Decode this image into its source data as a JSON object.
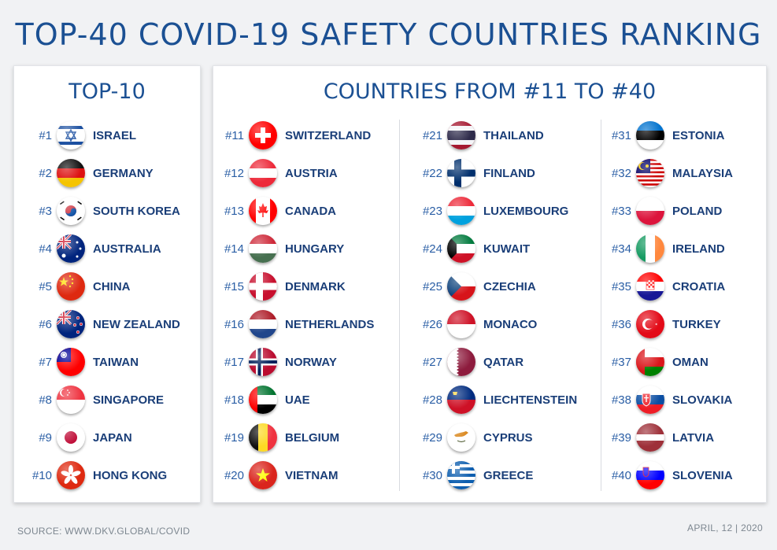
{
  "title": "TOP-40 COVID-19 SAFETY COUNTRIES RANKING",
  "top10": {
    "heading": "TOP-10",
    "items": [
      {
        "rank": "#1",
        "name": "ISRAEL",
        "flag": "israel-flag-icon"
      },
      {
        "rank": "#2",
        "name": "GERMANY",
        "flag": "germany-flag-icon"
      },
      {
        "rank": "#3",
        "name": "SOUTH KOREA",
        "flag": "south-korea-flag-icon"
      },
      {
        "rank": "#4",
        "name": "AUSTRALIA",
        "flag": "australia-flag-icon"
      },
      {
        "rank": "#5",
        "name": "CHINA",
        "flag": "china-flag-icon"
      },
      {
        "rank": "#6",
        "name": "NEW ZEALAND",
        "flag": "new-zealand-flag-icon"
      },
      {
        "rank": "#7",
        "name": "TAIWAN",
        "flag": "taiwan-flag-icon"
      },
      {
        "rank": "#8",
        "name": "SINGAPORE",
        "flag": "singapore-flag-icon"
      },
      {
        "rank": "#9",
        "name": "JAPAN",
        "flag": "japan-flag-icon"
      },
      {
        "rank": "#10",
        "name": "HONG KONG",
        "flag": "hong-kong-flag-icon"
      }
    ]
  },
  "rest": {
    "heading": "COUNTRIES FROM #11 TO #40",
    "items": [
      {
        "rank": "#11",
        "name": "SWITZERLAND",
        "flag": "switzerland-flag-icon"
      },
      {
        "rank": "#12",
        "name": "AUSTRIA",
        "flag": "austria-flag-icon"
      },
      {
        "rank": "#13",
        "name": "CANADA",
        "flag": "canada-flag-icon"
      },
      {
        "rank": "#14",
        "name": "HUNGARY",
        "flag": "hungary-flag-icon"
      },
      {
        "rank": "#15",
        "name": "DENMARK",
        "flag": "denmark-flag-icon"
      },
      {
        "rank": "#16",
        "name": "NETHERLANDS",
        "flag": "netherlands-flag-icon"
      },
      {
        "rank": "#17",
        "name": "NORWAY",
        "flag": "norway-flag-icon"
      },
      {
        "rank": "#18",
        "name": "UAE",
        "flag": "uae-flag-icon"
      },
      {
        "rank": "#19",
        "name": "BELGIUM",
        "flag": "belgium-flag-icon"
      },
      {
        "rank": "#20",
        "name": "VIETNAM",
        "flag": "vietnam-flag-icon"
      },
      {
        "rank": "#21",
        "name": "THAILAND",
        "flag": "thailand-flag-icon"
      },
      {
        "rank": "#22",
        "name": "FINLAND",
        "flag": "finland-flag-icon"
      },
      {
        "rank": "#23",
        "name": "LUXEMBOURG",
        "flag": "luxembourg-flag-icon"
      },
      {
        "rank": "#24",
        "name": "KUWAIT",
        "flag": "kuwait-flag-icon"
      },
      {
        "rank": "#25",
        "name": "CZECHIA",
        "flag": "czechia-flag-icon"
      },
      {
        "rank": "#26",
        "name": "MONACO",
        "flag": "monaco-flag-icon"
      },
      {
        "rank": "#27",
        "name": "QATAR",
        "flag": "qatar-flag-icon"
      },
      {
        "rank": "#28",
        "name": "LIECHTENSTEIN",
        "flag": "liechtenstein-flag-icon"
      },
      {
        "rank": "#29",
        "name": "CYPRUS",
        "flag": "cyprus-flag-icon"
      },
      {
        "rank": "#30",
        "name": "GREECE",
        "flag": "greece-flag-icon"
      },
      {
        "rank": "#31",
        "name": "ESTONIA",
        "flag": "estonia-flag-icon"
      },
      {
        "rank": "#32",
        "name": "MALAYSIA",
        "flag": "malaysia-flag-icon"
      },
      {
        "rank": "#33",
        "name": "POLAND",
        "flag": "poland-flag-icon"
      },
      {
        "rank": "#34",
        "name": "IRELAND",
        "flag": "ireland-flag-icon"
      },
      {
        "rank": "#35",
        "name": "CROATIA",
        "flag": "croatia-flag-icon"
      },
      {
        "rank": "#36",
        "name": "TURKEY",
        "flag": "turkey-flag-icon"
      },
      {
        "rank": "#37",
        "name": "OMAN",
        "flag": "oman-flag-icon"
      },
      {
        "rank": "#38",
        "name": "SLOVAKIA",
        "flag": "slovakia-flag-icon"
      },
      {
        "rank": "#39",
        "name": "LATVIA",
        "flag": "latvia-flag-icon"
      },
      {
        "rank": "#40",
        "name": "SLOVENIA",
        "flag": "slovenia-flag-icon"
      }
    ]
  },
  "footer": {
    "source": "SOURCE: WWW.DKV.GLOBAL/COVID",
    "date": "APRIL, 12 | 2020"
  },
  "colors": {
    "title": "#1b5093",
    "text": "#1a3e78",
    "background": "#f1f2f4",
    "panel": "#ffffff"
  }
}
